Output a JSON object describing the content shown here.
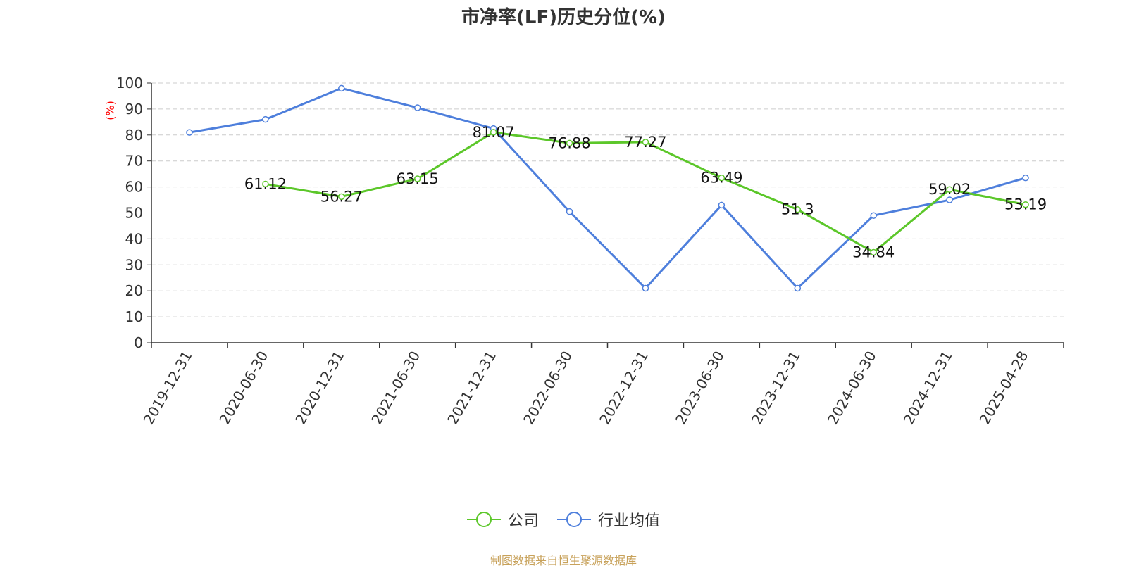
{
  "chart_data": {
    "type": "line",
    "title": "市净率(LF)历史分位(%)",
    "ylabel": "(%)",
    "xlabel": "",
    "ylim": [
      0,
      100
    ],
    "yticks": [
      0,
      10,
      20,
      30,
      40,
      50,
      60,
      70,
      80,
      90,
      100
    ],
    "categories": [
      "2019-12-31",
      "2020-06-30",
      "2020-12-31",
      "2021-06-30",
      "2021-12-31",
      "2022-06-30",
      "2022-12-31",
      "2023-06-30",
      "2023-12-31",
      "2024-06-30",
      "2024-12-31",
      "2025-04-28"
    ],
    "grid": true,
    "legend_position": "bottom",
    "series": [
      {
        "name": "公司",
        "color": "#5cc72a",
        "values": [
          null,
          61.12,
          56.27,
          63.15,
          81.07,
          76.88,
          77.27,
          63.49,
          51.3,
          34.84,
          59.02,
          53.19
        ],
        "labels": [
          "",
          "61.12",
          "56.27",
          "63.15",
          "81.07",
          "76.88",
          "77.27",
          "63.49",
          "51.3",
          "34.84",
          "59.02",
          "53.19"
        ]
      },
      {
        "name": "行业均值",
        "color": "#4e7fdc",
        "values": [
          81,
          86,
          98,
          90.5,
          82.5,
          50.5,
          21,
          53,
          21,
          49,
          55,
          63.5
        ]
      }
    ]
  },
  "footer": {
    "source": "制图数据来自恒生聚源数据库"
  }
}
